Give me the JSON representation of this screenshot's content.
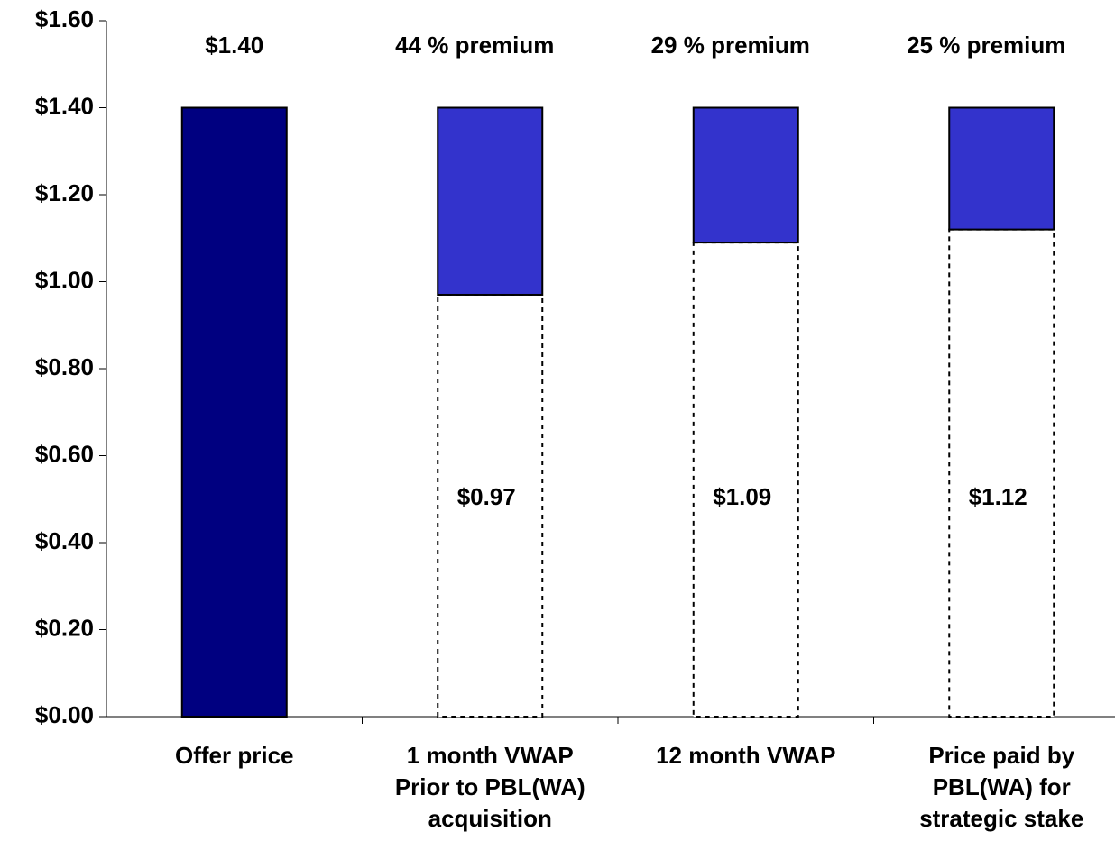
{
  "chart_data": {
    "type": "stacked-bar",
    "categories": [
      [
        "Offer price"
      ],
      [
        "1 month VWAP",
        "Prior to PBL(WA)",
        "acquisition"
      ],
      [
        "12 month VWAP"
      ],
      [
        "Price paid by",
        "PBL(WA) for",
        "strategic stake"
      ]
    ],
    "series": [
      {
        "values": [
          1.4,
          0.97,
          1.09,
          1.12
        ],
        "value_labels": [
          "$1.40",
          "$0.97",
          "$1.09",
          "$1.12"
        ],
        "colors": [
          "#000080",
          "#ffffff",
          "#ffffff",
          "#ffffff"
        ],
        "borders": [
          "solid",
          "dotted",
          "dotted",
          "dotted"
        ]
      },
      {
        "values": [
          null,
          0.43,
          0.31,
          0.28
        ],
        "value_labels": [
          null,
          "44 % premium",
          "29 % premium",
          "25 % premium"
        ],
        "color": "#3333cc"
      }
    ],
    "ylim": [
      0,
      1.6
    ],
    "yticks": [
      {
        "value": 0,
        "label": "$0.00"
      },
      {
        "value": 0.2,
        "label": "$0.20"
      },
      {
        "value": 0.4,
        "label": "$0.40"
      },
      {
        "value": 0.6,
        "label": "$0.60"
      },
      {
        "value": 0.8,
        "label": "$0.80"
      },
      {
        "value": 1.0,
        "label": "$1.00"
      },
      {
        "value": 1.2,
        "label": "$1.20"
      },
      {
        "value": 1.4,
        "label": "$1.40"
      },
      {
        "value": 1.6,
        "label": "$1.60"
      }
    ]
  }
}
